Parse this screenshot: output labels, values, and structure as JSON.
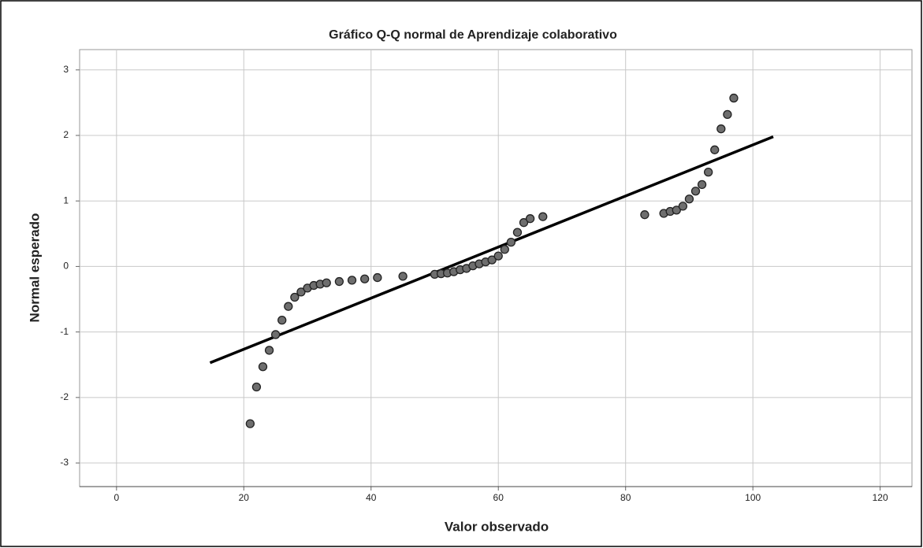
{
  "chart_data": {
    "type": "scatter",
    "title": "Gráfico Q-Q normal de Aprendizaje colaborativo",
    "x_label": "Valor observado",
    "y_label": "Normal esperado",
    "xlim": [
      -5.8,
      125
    ],
    "xticks": [
      0,
      20,
      40,
      60,
      80,
      100,
      120
    ],
    "ylim": [
      -3.36,
      3.31
    ],
    "yticks": [
      -3,
      -2,
      -1,
      0,
      1,
      2,
      3
    ],
    "grid": true,
    "series": [
      {
        "color": "#6e6e6e",
        "x": [
          21,
          22,
          23,
          24,
          25,
          26,
          27,
          28,
          29,
          30,
          31,
          32,
          33,
          35,
          37,
          39,
          41,
          45,
          50,
          51,
          52,
          53,
          54,
          55,
          56,
          57,
          58,
          59,
          60,
          61,
          62,
          63,
          64,
          65,
          67,
          83,
          86,
          87,
          88,
          89,
          90,
          91,
          92,
          93,
          94,
          95,
          96,
          97
        ],
        "values": [
          -2.4,
          -1.84,
          -1.53,
          -1.28,
          -1.04,
          -0.82,
          -0.61,
          -0.47,
          -0.39,
          -0.33,
          -0.29,
          -0.27,
          -0.25,
          -0.23,
          -0.21,
          -0.19,
          -0.17,
          -0.15,
          -0.12,
          -0.11,
          -0.1,
          -0.08,
          -0.05,
          -0.03,
          0.01,
          0.04,
          0.07,
          0.1,
          0.16,
          0.26,
          0.37,
          0.52,
          0.67,
          0.73,
          0.76,
          0.79,
          0.81,
          0.84,
          0.86,
          0.92,
          1.03,
          1.15,
          1.25,
          1.44,
          1.78,
          2.1,
          2.32,
          2.57
        ]
      }
    ],
    "reference_line": {
      "color": "#000000",
      "x": [
        14.7,
        103.2
      ],
      "values": [
        -1.47,
        1.98
      ]
    }
  }
}
